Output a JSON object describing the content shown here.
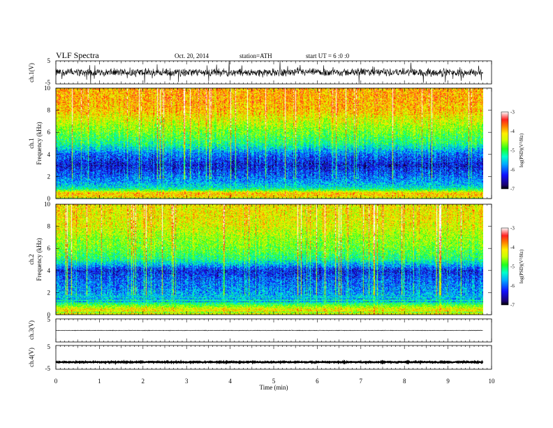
{
  "header": {
    "title": "VLF  Spectra",
    "date": "Oct. 20, 2014",
    "station": "station=ATH",
    "start": "start  UT  =   6  :0  :0"
  },
  "chart_data": [
    {
      "type": "line",
      "panel": "ch1-waveform",
      "ylabel": "ch.1(V)",
      "ylim": [
        -5,
        5
      ],
      "yticks": [
        "5",
        "-5"
      ],
      "xlim": [
        0,
        10
      ],
      "signal_end_min": 9.8,
      "baseline_v": 0.0,
      "noise_amplitude_v": 2.0
    },
    {
      "type": "heatmap",
      "panel": "ch1-spectrogram",
      "ylabel": "Frequency (kHz)",
      "channel_label": "ch.1",
      "ylim": [
        0,
        10
      ],
      "yticks": [
        "0",
        "2",
        "4",
        "6",
        "8",
        "10"
      ],
      "xlim": [
        0,
        10
      ],
      "colorbar": {
        "label": "log(PSD)(V²/Hz)",
        "min": -7,
        "max": -3,
        "ticks": [
          "-3",
          "-4",
          "-5",
          "-6",
          "-7"
        ]
      },
      "level_profile": [
        {
          "f": 0.0,
          "v": -4.2
        },
        {
          "f": 0.5,
          "v": -4.0
        },
        {
          "f": 1.0,
          "v": -5.5
        },
        {
          "f": 1.5,
          "v": -5.8
        },
        {
          "f": 2.0,
          "v": -6.0
        },
        {
          "f": 3.0,
          "v": -6.4
        },
        {
          "f": 4.0,
          "v": -6.0
        },
        {
          "f": 5.0,
          "v": -5.2
        },
        {
          "f": 6.0,
          "v": -4.8
        },
        {
          "f": 7.0,
          "v": -4.4
        },
        {
          "f": 8.0,
          "v": -4.0
        },
        {
          "f": 9.0,
          "v": -3.9
        },
        {
          "f": 10.0,
          "v": -3.9
        }
      ]
    },
    {
      "type": "heatmap",
      "panel": "ch2-spectrogram",
      "ylabel": "Frequency (kHz)",
      "channel_label": "ch.2",
      "ylim": [
        0,
        10
      ],
      "yticks": [
        "0",
        "2",
        "4",
        "6",
        "8",
        "10"
      ],
      "xlim": [
        0,
        10
      ],
      "colorbar": {
        "label": "log(PSD)(V²/Hz)",
        "min": -7,
        "max": -3,
        "ticks": [
          "-3",
          "-4",
          "-5",
          "-6",
          "-7"
        ]
      },
      "level_profile": [
        {
          "f": 0.0,
          "v": -4.4
        },
        {
          "f": 0.5,
          "v": -4.2
        },
        {
          "f": 1.0,
          "v": -5.2
        },
        {
          "f": 1.5,
          "v": -5.6
        },
        {
          "f": 2.0,
          "v": -5.8
        },
        {
          "f": 3.0,
          "v": -6.0
        },
        {
          "f": 4.0,
          "v": -6.3
        },
        {
          "f": 5.0,
          "v": -5.2
        },
        {
          "f": 6.0,
          "v": -4.8
        },
        {
          "f": 7.0,
          "v": -4.6
        },
        {
          "f": 8.0,
          "v": -4.3
        },
        {
          "f": 9.0,
          "v": -4.2
        },
        {
          "f": 10.0,
          "v": -4.2
        }
      ]
    },
    {
      "type": "line",
      "panel": "ch3-waveform",
      "ylabel": "ch.3(V)",
      "ylim": [
        -5,
        5
      ],
      "yticks": [
        "5"
      ],
      "xlim": [
        0,
        10
      ],
      "signal_end_min": 9.8,
      "baseline_v": 0.0,
      "noise_amplitude_v": 0.15
    },
    {
      "type": "line",
      "panel": "ch4-waveform",
      "ylabel": "ch.4(V)",
      "ylim": [
        -5,
        5
      ],
      "yticks": [
        "5",
        "-5"
      ],
      "xlim": [
        0,
        10
      ],
      "signal_end_min": 9.8,
      "baseline_v": -2.0,
      "noise_amplitude_v": 0.25
    }
  ],
  "xaxis": {
    "label": "Time  (min)",
    "ticks": [
      "0",
      "1",
      "2",
      "3",
      "4",
      "5",
      "6",
      "7",
      "8",
      "9",
      "10"
    ]
  }
}
